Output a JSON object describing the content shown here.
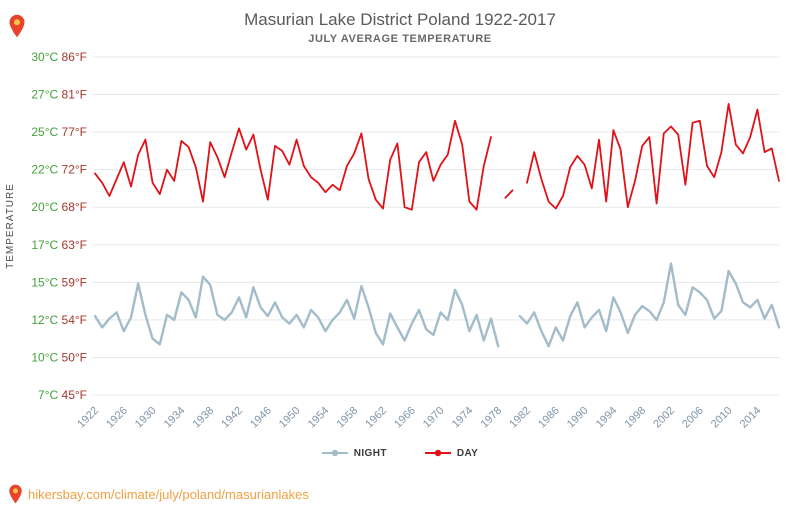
{
  "colors": {
    "title": "#57595b",
    "subtitle": "#66696c",
    "celsius": "#44a03b",
    "fahrenheit": "#a6372c",
    "year_label": "#7e94a9",
    "axis_title": "#4a4d50",
    "grid": "#e6e9eb",
    "night": "#a3bcc9",
    "day": "#e01217",
    "url": "#f0a142",
    "pin": "#e8432d",
    "pin_center": "#f6c64a",
    "legend_label": "#3a3d40"
  },
  "footer": {
    "url_text": "hikersbay.com/climate/july/poland/masurianlakes"
  },
  "icons": {
    "corner_pin": "location-pin-icon",
    "footer_pin": "location-pin-icon"
  },
  "chart_data": {
    "type": "line",
    "title": "Masurian Lake District Poland 1922-2017",
    "subtitle": "JULY AVERAGE TEMPERATURE",
    "ylabel": "TEMPERATURE",
    "xlabel": "",
    "grid": true,
    "legend_position": "bottom",
    "x_start": 1922,
    "x_end": 2017,
    "x_ticks": [
      1922,
      1926,
      1930,
      1934,
      1938,
      1942,
      1946,
      1950,
      1954,
      1958,
      1962,
      1966,
      1970,
      1974,
      1978,
      1982,
      1986,
      1990,
      1994,
      1998,
      2002,
      2006,
      2010,
      2014
    ],
    "y_ticks": [
      {
        "c": "30°C",
        "f": "86°F",
        "value": 30
      },
      {
        "c": "27°C",
        "f": "81°F",
        "value": 27
      },
      {
        "c": "25°C",
        "f": "77°F",
        "value": 25
      },
      {
        "c": "22°C",
        "f": "72°F",
        "value": 22
      },
      {
        "c": "20°C",
        "f": "68°F",
        "value": 20
      },
      {
        "c": "17°C",
        "f": "63°F",
        "value": 17
      },
      {
        "c": "15°C",
        "f": "59°F",
        "value": 15
      },
      {
        "c": "12°C",
        "f": "54°F",
        "value": 12
      },
      {
        "c": "10°C",
        "f": "50°F",
        "value": 10
      },
      {
        "c": "7°C",
        "f": "45°F",
        "value": 7
      }
    ],
    "series": [
      {
        "name": "NIGHT",
        "color": "#a3bcc9",
        "values": [
          12.3,
          11.6,
          12.1,
          12.6,
          11.4,
          12.2,
          14.9,
          12.4,
          11.0,
          10.7,
          12.4,
          12.0,
          14.2,
          13.6,
          12.2,
          15.3,
          14.8,
          12.4,
          12.0,
          12.6,
          13.8,
          12.2,
          14.6,
          13.0,
          12.3,
          13.4,
          12.2,
          11.8,
          12.4,
          11.6,
          12.8,
          12.2,
          11.4,
          12.0,
          12.6,
          13.6,
          12.1,
          14.7,
          13.0,
          11.3,
          10.7,
          12.5,
          11.6,
          10.9,
          11.8,
          12.8,
          11.5,
          11.2,
          12.6,
          12.0,
          14.4,
          13.2,
          11.4,
          12.4,
          10.9,
          12.1,
          10.6,
          null,
          null,
          12.3,
          11.8,
          12.6,
          11.4,
          10.6,
          11.6,
          10.9,
          12.3,
          13.4,
          11.6,
          12.2,
          12.8,
          11.4,
          13.8,
          12.6,
          11.3,
          12.4,
          13.1,
          12.7,
          12.0,
          13.4,
          16.0,
          13.2,
          12.4,
          14.6,
          14.2,
          13.6,
          12.1,
          12.7,
          15.6,
          14.9,
          13.4,
          13.0,
          13.6,
          12.1,
          13.2,
          11.6
        ]
      },
      {
        "name": "DAY",
        "color": "#e01217",
        "values": [
          21.8,
          21.3,
          20.6,
          21.5,
          22.6,
          21.1,
          23.2,
          24.4,
          21.3,
          20.7,
          22.0,
          21.4,
          24.3,
          23.8,
          22.2,
          20.3,
          24.2,
          23.0,
          21.6,
          23.4,
          25.2,
          23.6,
          24.8,
          22.0,
          20.4,
          23.9,
          23.5,
          22.4,
          24.4,
          22.3,
          21.6,
          21.3,
          20.8,
          21.2,
          20.9,
          22.3,
          23.3,
          24.9,
          21.5,
          20.4,
          19.9,
          22.8,
          24.1,
          20.0,
          19.8,
          22.6,
          23.4,
          21.4,
          22.4,
          23.2,
          25.6,
          24.0,
          20.3,
          19.8,
          22.3,
          24.6,
          null,
          20.5,
          20.9,
          null,
          21.3,
          23.4,
          21.5,
          20.3,
          19.9,
          20.6,
          22.2,
          23.1,
          22.4,
          21.0,
          24.4,
          20.3,
          25.1,
          23.6,
          20.0,
          21.4,
          23.9,
          24.6,
          20.2,
          24.9,
          25.3,
          24.8,
          21.2,
          25.5,
          25.6,
          22.3,
          21.6,
          23.4,
          26.5,
          24.0,
          23.3,
          24.6,
          26.2,
          23.4,
          23.7,
          21.4
        ]
      }
    ]
  }
}
